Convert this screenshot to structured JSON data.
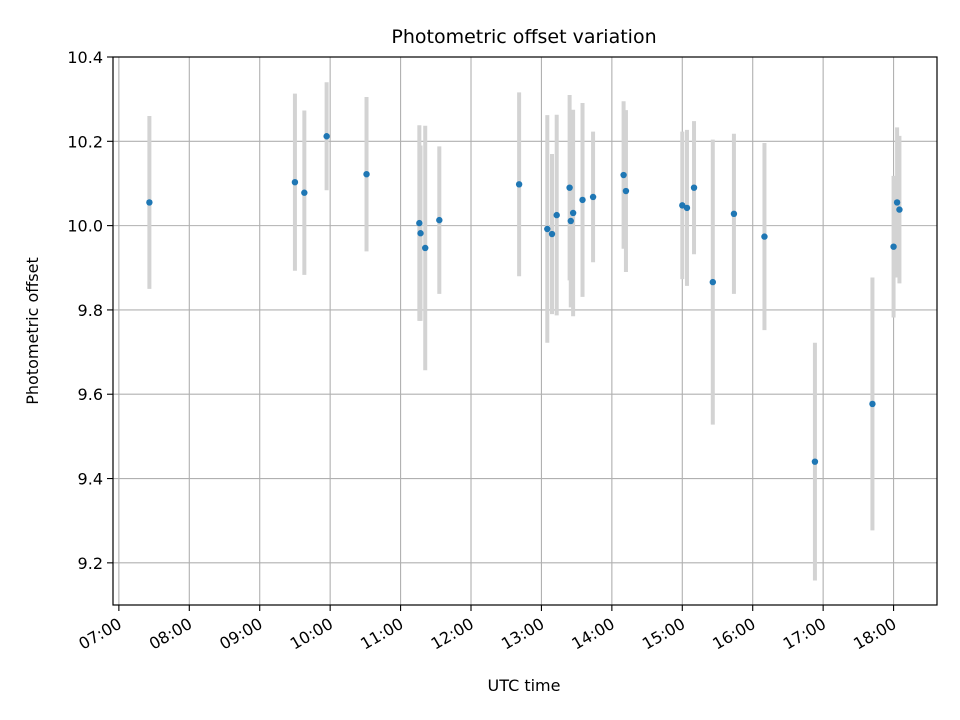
{
  "chart_data": {
    "type": "scatter",
    "title": "Photometric offset variation",
    "xlabel": "UTC time",
    "ylabel": "Photometric offset",
    "x_axis_type": "time",
    "xlim": [
      "06:55",
      "18:37"
    ],
    "ylim": [
      9.1,
      10.4
    ],
    "x_ticks": [
      "07:00",
      "08:00",
      "09:00",
      "10:00",
      "11:00",
      "12:00",
      "13:00",
      "14:00",
      "15:00",
      "16:00",
      "17:00",
      "18:00"
    ],
    "y_ticks": [
      "9.2",
      "9.4",
      "9.6",
      "9.8",
      "10.0",
      "10.2",
      "10.4"
    ],
    "grid": true,
    "legend": false,
    "point_color": "#1f77b4",
    "errorbar_color": "#d3d3d3",
    "points": [
      {
        "x": "07:26",
        "y": 10.055,
        "err": 0.205
      },
      {
        "x": "09:30",
        "y": 10.103,
        "err": 0.21
      },
      {
        "x": "09:38",
        "y": 10.078,
        "err": 0.195
      },
      {
        "x": "09:57",
        "y": 10.212,
        "err": 0.128
      },
      {
        "x": "10:31",
        "y": 10.122,
        "err": 0.183
      },
      {
        "x": "11:16",
        "y": 10.006,
        "err": 0.232
      },
      {
        "x": "11:17",
        "y": 9.982,
        "err": 0.208
      },
      {
        "x": "11:21",
        "y": 9.947,
        "err": 0.29
      },
      {
        "x": "11:33",
        "y": 10.013,
        "err": 0.175
      },
      {
        "x": "12:41",
        "y": 10.098,
        "err": 0.218
      },
      {
        "x": "13:05",
        "y": 9.992,
        "err": 0.27
      },
      {
        "x": "13:09",
        "y": 9.98,
        "err": 0.19
      },
      {
        "x": "13:13",
        "y": 10.025,
        "err": 0.238
      },
      {
        "x": "13:24",
        "y": 10.09,
        "err": 0.22
      },
      {
        "x": "13:25",
        "y": 10.011,
        "err": 0.205
      },
      {
        "x": "13:27",
        "y": 10.03,
        "err": 0.245
      },
      {
        "x": "13:35",
        "y": 10.061,
        "err": 0.23
      },
      {
        "x": "13:44",
        "y": 10.068,
        "err": 0.155
      },
      {
        "x": "14:10",
        "y": 10.12,
        "err": 0.175
      },
      {
        "x": "14:12",
        "y": 10.082,
        "err": 0.192
      },
      {
        "x": "15:00",
        "y": 10.048,
        "err": 0.175
      },
      {
        "x": "15:04",
        "y": 10.042,
        "err": 0.185
      },
      {
        "x": "15:10",
        "y": 10.09,
        "err": 0.158
      },
      {
        "x": "15:26",
        "y": 9.866,
        "err": 0.338
      },
      {
        "x": "15:44",
        "y": 10.028,
        "err": 0.19
      },
      {
        "x": "16:10",
        "y": 9.974,
        "err": 0.222
      },
      {
        "x": "16:53",
        "y": 9.44,
        "err": 0.282
      },
      {
        "x": "17:42",
        "y": 9.577,
        "err": 0.3
      },
      {
        "x": "18:00",
        "y": 9.95,
        "err": 0.168
      },
      {
        "x": "18:03",
        "y": 10.055,
        "err": 0.178
      },
      {
        "x": "18:05",
        "y": 10.038,
        "err": 0.175
      }
    ]
  }
}
